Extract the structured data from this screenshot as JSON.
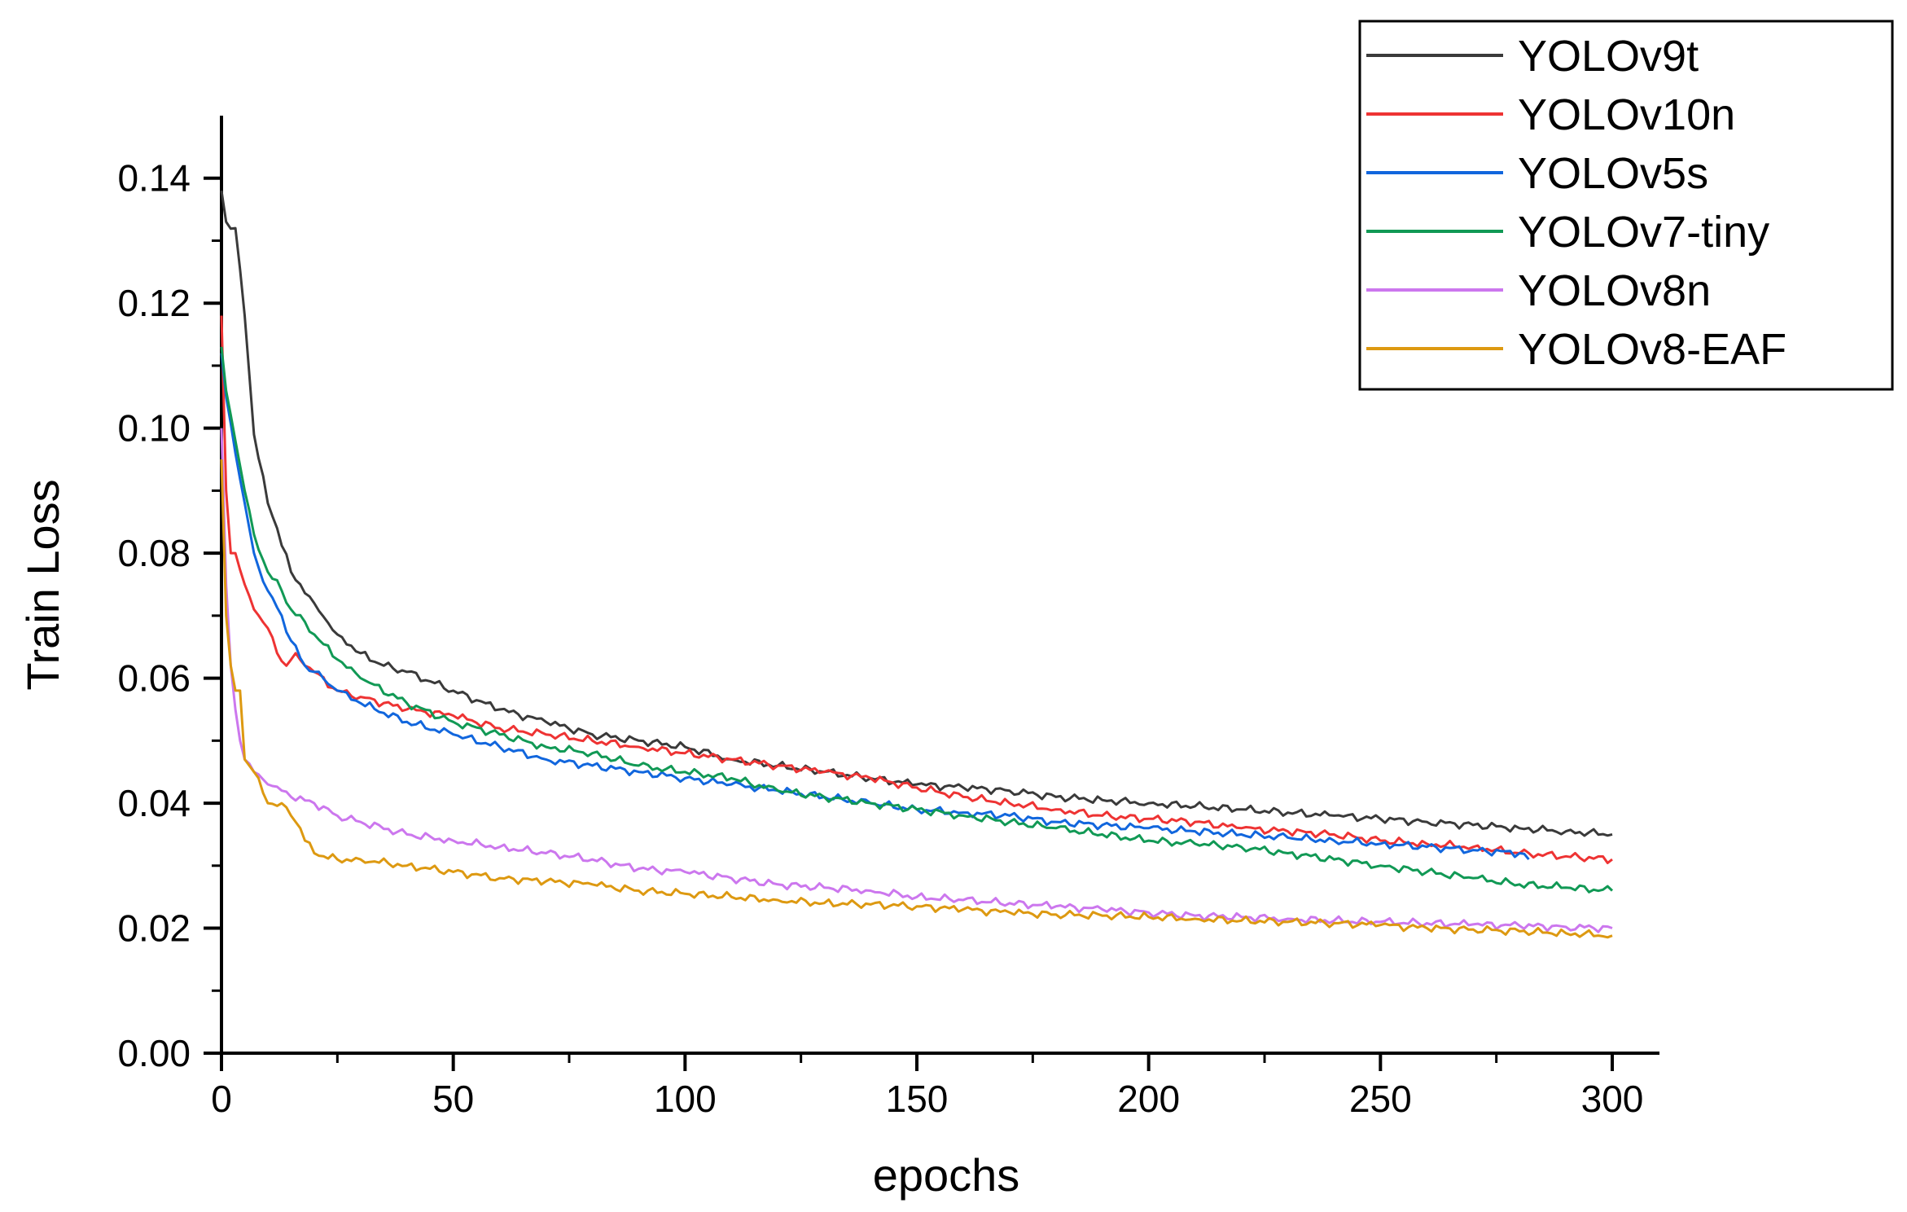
{
  "chart_data": {
    "type": "line",
    "title": "",
    "xlabel": "epochs",
    "ylabel": "Train Loss",
    "xlim": [
      0,
      310
    ],
    "ylim": [
      0,
      0.15
    ],
    "grid": false,
    "legend_position": "top-right",
    "x_ticks": [
      0,
      50,
      100,
      150,
      200,
      250,
      300
    ],
    "x_tick_labels": [
      "0",
      "50",
      "100",
      "150",
      "200",
      "250",
      "300"
    ],
    "y_ticks": [
      0.0,
      0.02,
      0.04,
      0.06,
      0.08,
      0.1,
      0.12,
      0.14
    ],
    "y_tick_labels": [
      "0.00",
      "0.02",
      "0.04",
      "0.06",
      "0.08",
      "0.10",
      "0.12",
      "0.14"
    ],
    "series": [
      {
        "name": "YOLOv9t",
        "color": "#3a3a3a",
        "x": [
          0,
          1,
          3,
          5,
          7,
          10,
          12,
          15,
          20,
          25,
          30,
          35,
          40,
          50,
          60,
          70,
          80,
          90,
          100,
          110,
          120,
          130,
          140,
          150,
          160,
          170,
          180,
          190,
          200,
          210,
          220,
          230,
          240,
          250,
          260,
          270,
          280,
          290,
          300
        ],
        "y": [
          0.138,
          0.133,
          0.132,
          0.118,
          0.099,
          0.088,
          0.084,
          0.077,
          0.072,
          0.067,
          0.064,
          0.062,
          0.061,
          0.058,
          0.055,
          0.053,
          0.051,
          0.05,
          0.049,
          0.047,
          0.046,
          0.045,
          0.044,
          0.043,
          0.0425,
          0.042,
          0.041,
          0.0405,
          0.04,
          0.0395,
          0.039,
          0.0385,
          0.038,
          0.0375,
          0.037,
          0.0365,
          0.036,
          0.0355,
          0.035
        ]
      },
      {
        "name": "YOLOv10n",
        "color": "#ee3333",
        "x": [
          0,
          1,
          2,
          3,
          5,
          7,
          10,
          12,
          14,
          16,
          18,
          20,
          25,
          30,
          40,
          50,
          60,
          70,
          80,
          90,
          100,
          110,
          120,
          130,
          140,
          150,
          160,
          170,
          180,
          190,
          200,
          210,
          220,
          230,
          240,
          250,
          260,
          270,
          280,
          290,
          300
        ],
        "y": [
          0.118,
          0.09,
          0.08,
          0.08,
          0.075,
          0.071,
          0.068,
          0.064,
          0.062,
          0.064,
          0.062,
          0.061,
          0.058,
          0.057,
          0.055,
          0.054,
          0.052,
          0.051,
          0.05,
          0.049,
          0.048,
          0.047,
          0.046,
          0.045,
          0.044,
          0.0425,
          0.041,
          0.04,
          0.039,
          0.038,
          0.0375,
          0.037,
          0.036,
          0.0355,
          0.035,
          0.034,
          0.0335,
          0.033,
          0.032,
          0.0315,
          0.031
        ]
      },
      {
        "name": "YOLOv5s",
        "color": "#1166dd",
        "x": [
          0,
          1,
          3,
          5,
          7,
          10,
          13,
          15,
          18,
          20,
          25,
          30,
          40,
          50,
          60,
          70,
          80,
          90,
          100,
          110,
          120,
          130,
          140,
          150,
          160,
          170,
          180,
          190,
          200,
          210,
          220,
          230,
          240,
          250,
          260,
          270,
          280,
          282
        ],
        "y": [
          0.112,
          0.105,
          0.096,
          0.088,
          0.08,
          0.074,
          0.07,
          0.066,
          0.062,
          0.061,
          0.058,
          0.056,
          0.053,
          0.051,
          0.049,
          0.047,
          0.046,
          0.045,
          0.044,
          0.043,
          0.042,
          0.041,
          0.04,
          0.039,
          0.0385,
          0.038,
          0.037,
          0.0365,
          0.036,
          0.0355,
          0.035,
          0.0345,
          0.034,
          0.0335,
          0.033,
          0.0325,
          0.032,
          0.031
        ]
      },
      {
        "name": "YOLOv7-tiny",
        "color": "#119955",
        "x": [
          0,
          1,
          3,
          5,
          7,
          10,
          13,
          15,
          18,
          20,
          25,
          30,
          40,
          50,
          60,
          70,
          80,
          90,
          100,
          110,
          120,
          130,
          140,
          150,
          160,
          170,
          180,
          190,
          200,
          210,
          220,
          230,
          240,
          250,
          260,
          270,
          280,
          290,
          300
        ],
        "y": [
          0.113,
          0.106,
          0.098,
          0.09,
          0.083,
          0.077,
          0.074,
          0.071,
          0.069,
          0.067,
          0.063,
          0.06,
          0.056,
          0.053,
          0.051,
          0.049,
          0.048,
          0.046,
          0.045,
          0.044,
          0.042,
          0.041,
          0.04,
          0.039,
          0.038,
          0.037,
          0.036,
          0.035,
          0.034,
          0.0335,
          0.033,
          0.032,
          0.031,
          0.03,
          0.029,
          0.028,
          0.027,
          0.0265,
          0.026
        ]
      },
      {
        "name": "YOLOv8n",
        "color": "#cc77ee",
        "x": [
          0,
          1,
          2,
          3,
          4,
          5,
          7,
          10,
          13,
          15,
          20,
          25,
          30,
          40,
          50,
          60,
          70,
          80,
          90,
          100,
          110,
          120,
          130,
          140,
          150,
          160,
          170,
          180,
          190,
          200,
          210,
          220,
          230,
          240,
          250,
          260,
          270,
          280,
          290,
          300
        ],
        "y": [
          0.1,
          0.075,
          0.062,
          0.055,
          0.05,
          0.047,
          0.045,
          0.043,
          0.042,
          0.041,
          0.04,
          0.038,
          0.037,
          0.035,
          0.034,
          0.033,
          0.032,
          0.031,
          0.0295,
          0.029,
          0.028,
          0.027,
          0.0265,
          0.026,
          0.025,
          0.0245,
          0.024,
          0.0235,
          0.023,
          0.0225,
          0.022,
          0.0218,
          0.0215,
          0.0212,
          0.021,
          0.0208,
          0.0206,
          0.0204,
          0.0202,
          0.02
        ]
      },
      {
        "name": "YOLOv8-EAF",
        "color": "#dd9911",
        "x": [
          0,
          1,
          2,
          3,
          4,
          5,
          6,
          7,
          10,
          13,
          15,
          17,
          18,
          20,
          25,
          30,
          40,
          50,
          60,
          70,
          80,
          90,
          100,
          110,
          120,
          130,
          140,
          150,
          160,
          170,
          180,
          190,
          200,
          210,
          220,
          230,
          240,
          250,
          260,
          270,
          280,
          290,
          300
        ],
        "y": [
          0.095,
          0.07,
          0.062,
          0.058,
          0.058,
          0.047,
          0.046,
          0.045,
          0.04,
          0.04,
          0.038,
          0.036,
          0.034,
          0.032,
          0.031,
          0.031,
          0.03,
          0.029,
          0.028,
          0.0275,
          0.027,
          0.026,
          0.0255,
          0.025,
          0.0245,
          0.024,
          0.0238,
          0.0235,
          0.023,
          0.0225,
          0.0222,
          0.022,
          0.0218,
          0.0215,
          0.0212,
          0.021,
          0.0208,
          0.0205,
          0.02,
          0.0198,
          0.0195,
          0.0192,
          0.0188
        ]
      }
    ]
  }
}
